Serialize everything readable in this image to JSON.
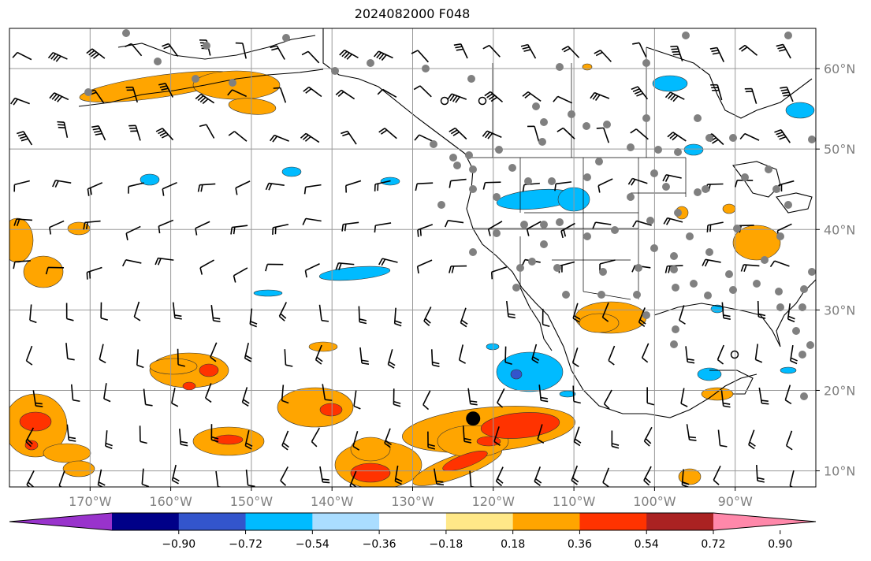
{
  "title": "2024082000 F048",
  "map": {
    "lon_range": [
      -180,
      -80
    ],
    "lat_range": [
      8,
      65
    ],
    "gridlines": true,
    "lat_ticks": [
      {
        "value": 60,
        "label": "60°N"
      },
      {
        "value": 50,
        "label": "50°N"
      },
      {
        "value": 40,
        "label": "40°N"
      },
      {
        "value": 30,
        "label": "30°N"
      },
      {
        "value": 20,
        "label": "20°N"
      },
      {
        "value": 10,
        "label": "10°N"
      }
    ],
    "lon_ticks": [
      {
        "value": -170,
        "label": "170°W"
      },
      {
        "value": -160,
        "label": "160°W"
      },
      {
        "value": -150,
        "label": "150°W"
      },
      {
        "value": -140,
        "label": "140°W"
      },
      {
        "value": -130,
        "label": "130°W"
      },
      {
        "value": -120,
        "label": "120°W"
      },
      {
        "value": -110,
        "label": "110°W"
      },
      {
        "value": -100,
        "label": "100°W"
      },
      {
        "value": -90,
        "label": "90°W"
      }
    ],
    "marker": {
      "lon": -122.5,
      "lat": 16.5,
      "color": "#000000"
    }
  },
  "colorbar": {
    "colors": [
      "#9933cc",
      "#000088",
      "#3355cc",
      "#00bbff",
      "#aaddff",
      "#ffffff",
      "#ffe888",
      "#ffa500",
      "#ff3300",
      "#aa2222",
      "#ff88aa"
    ],
    "tick_labels": [
      "−0.90",
      "−0.72",
      "−0.54",
      "−0.36",
      "−0.18",
      "0.18",
      "0.36",
      "0.54",
      "0.72",
      "0.90"
    ],
    "extend": "both"
  },
  "field_colors": {
    "light_orange": "#ffe888",
    "orange": "#ffa500",
    "red": "#ff3300",
    "light_blue": "#aaddff",
    "blue": "#00bbff",
    "dark_blue": "#3355cc",
    "station": "#808080"
  }
}
